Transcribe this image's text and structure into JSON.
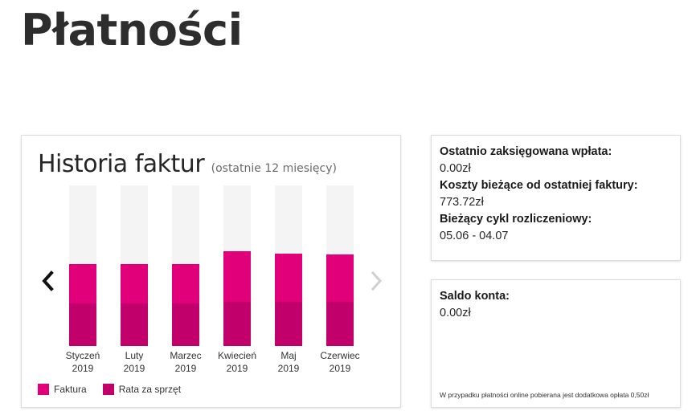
{
  "page": {
    "title": "Płatności"
  },
  "history": {
    "title": "Historia faktur",
    "subtitle": "(ostatnie 12 miesięcy)",
    "prev_label": "‹",
    "next_label": "›",
    "legend": [
      {
        "label": "Faktura",
        "color": "#e2007a"
      },
      {
        "label": "Rata za sprzęt",
        "color": "#c1006b"
      }
    ]
  },
  "chart_data": {
    "type": "bar",
    "stacked": true,
    "categories": [
      "Styczeń 2019",
      "Luty 2019",
      "Marzec 2019",
      "Kwiecień 2019",
      "Maj 2019",
      "Czerwiec 2019"
    ],
    "months": [
      "Styczeń",
      "Luty",
      "Marzec",
      "Kwiecień",
      "Maj",
      "Czerwiec"
    ],
    "years": [
      "2019",
      "2019",
      "2019",
      "2019",
      "2019",
      "2019"
    ],
    "series": [
      {
        "name": "Rata za sprzęt",
        "color": "#c1006b",
        "values": [
          0.265,
          0.265,
          0.265,
          0.275,
          0.275,
          0.275
        ]
      },
      {
        "name": "Faktura",
        "color": "#e2007a",
        "values": [
          0.245,
          0.245,
          0.245,
          0.315,
          0.3,
          0.295
        ]
      }
    ],
    "ylim": [
      0,
      1
    ]
  },
  "summary": {
    "last_payment_label": "Ostatnio zaksięgowana wpłata:",
    "last_payment_value": "0.00zł",
    "current_costs_label": "Koszty bieżące od ostatniej faktury:",
    "current_costs_value": "773.72zł",
    "billing_cycle_label": "Bieżący cykl rozliczeniowy:",
    "billing_cycle_value": "05.06 - 04.07"
  },
  "balance": {
    "label": "Saldo konta:",
    "value": "0.00zł",
    "note": "W przypadku płatności online pobierana jest dodatkowa opłata 0,50zł"
  }
}
